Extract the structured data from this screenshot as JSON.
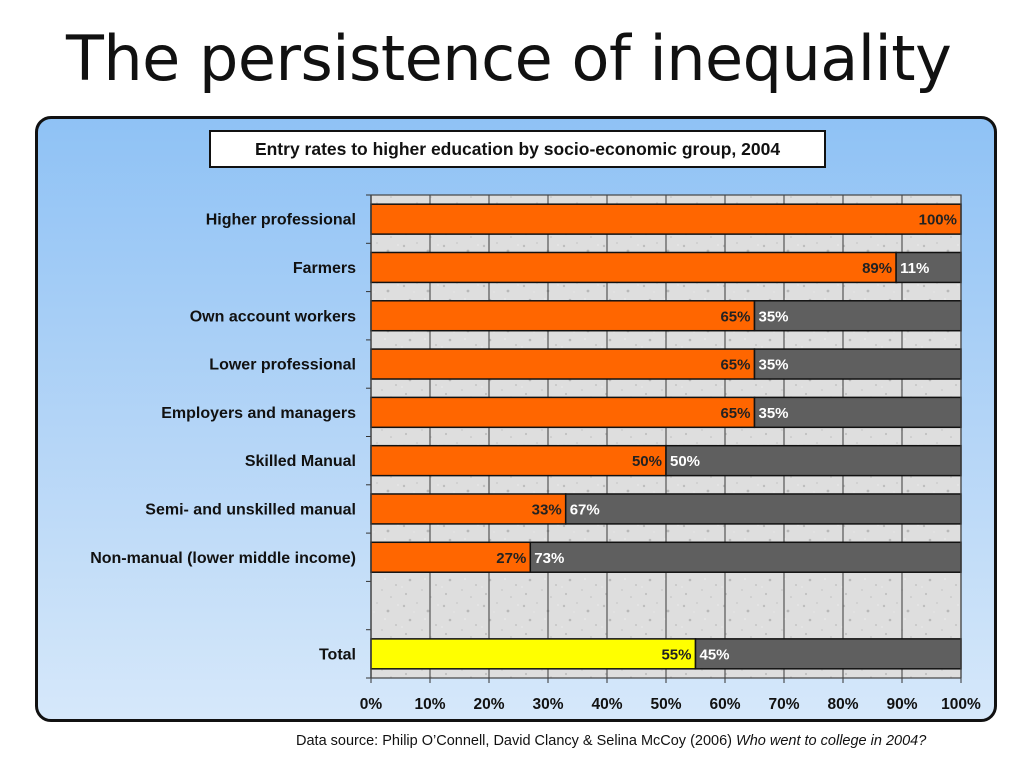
{
  "slide": {
    "title": "The persistence of inequality"
  },
  "source": {
    "prefix": "Data source: Philip O’Connell, David Clancy & Selina McCoy (2006) ",
    "italic": "Who went to college in 2004?"
  },
  "colors": {
    "entry": "#ff6600",
    "total_entry": "#ffff00",
    "non_entry": "#5f5f5f",
    "plot_background": "#dcdcdc",
    "panel_background": "#a8cdf5"
  },
  "chart_data": {
    "type": "bar",
    "orientation": "horizontal",
    "stacked": true,
    "title": "Entry rates to higher education by socio-economic group, 2004",
    "xlim": [
      0,
      100
    ],
    "xticks": [
      "0%",
      "10%",
      "20%",
      "30%",
      "40%",
      "50%",
      "60%",
      "70%",
      "80%",
      "90%",
      "100%"
    ],
    "grid": true,
    "legend": "none",
    "categories": [
      "Higher professional",
      "Farmers",
      "Own account workers",
      "Lower professional",
      "Employers and managers",
      "Skilled Manual",
      "Semi- and unskilled manual",
      "Non-manual (lower middle income)",
      "",
      "Total"
    ],
    "series": [
      {
        "values": [
          100,
          89,
          65,
          65,
          65,
          50,
          33,
          27,
          null,
          55
        ],
        "labels": [
          "100%",
          "89%",
          "65%",
          "65%",
          "65%",
          "50%",
          "33%",
          "27%",
          "",
          "55%"
        ]
      },
      {
        "values": [
          0,
          11,
          35,
          35,
          35,
          50,
          67,
          73,
          null,
          45
        ],
        "labels": [
          "",
          "11%",
          "35%",
          "35%",
          "35%",
          "50%",
          "67%",
          "73%",
          "",
          "45%"
        ]
      }
    ]
  }
}
